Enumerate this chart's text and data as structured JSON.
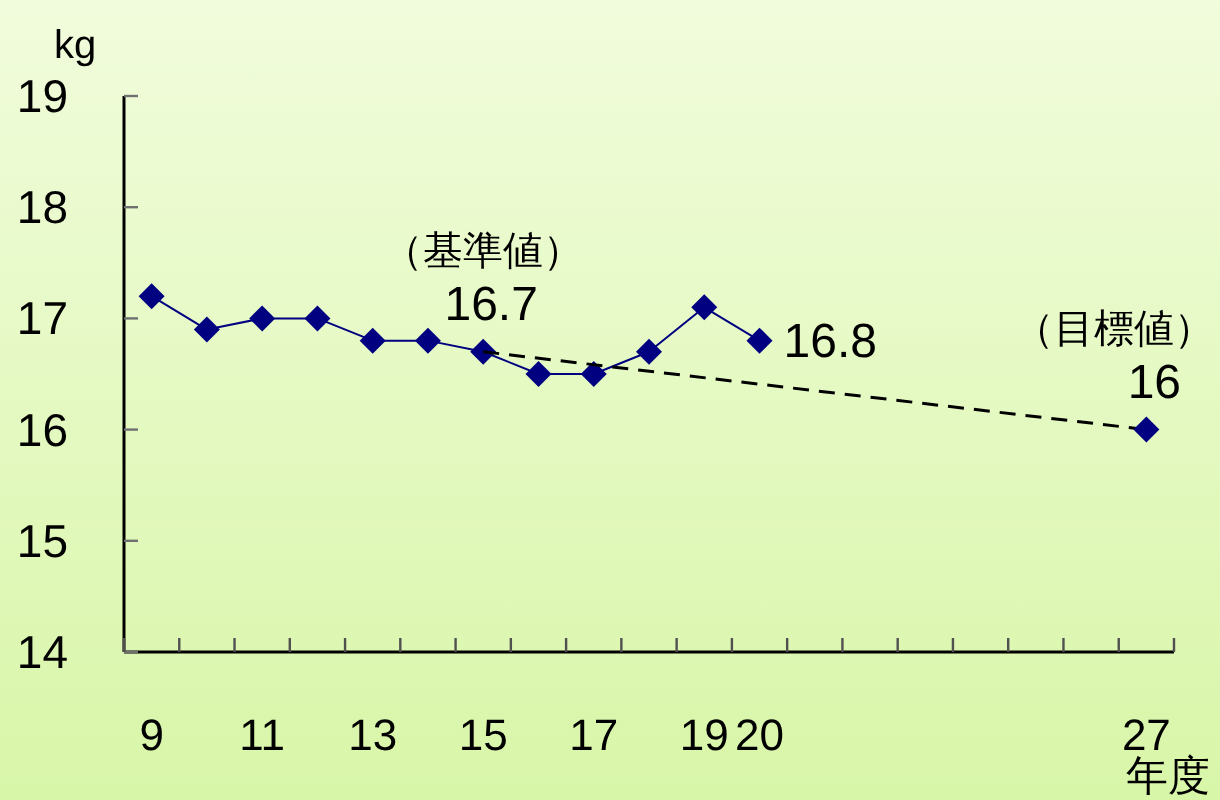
{
  "chart_data": {
    "type": "line",
    "xlabel": "年度",
    "ylabel": "kg",
    "series": [
      {
        "x": [
          9,
          10,
          11,
          12,
          13,
          14,
          15,
          16,
          17,
          18,
          19,
          20
        ],
        "color": "#000080",
        "values": [
          17.2,
          16.9,
          17.0,
          17.0,
          16.8,
          16.8,
          16.7,
          16.5,
          16.5,
          16.7,
          17.1,
          16.8
        ],
        "value_labels": [
          null,
          null,
          null,
          null,
          null,
          null,
          "16.7",
          null,
          null,
          null,
          null,
          "16.8"
        ]
      },
      {
        "type": "line",
        "x": [
          15,
          27
        ],
        "values": [
          16.7,
          16
        ],
        "color": "#000000",
        "line_style": "dashed",
        "marker": "none"
      },
      {
        "type": "scatter",
        "x": [
          27
        ],
        "values": [
          16
        ],
        "color": "#000080",
        "value_labels": [
          "16"
        ]
      }
    ],
    "marker": "diamond",
    "line_style": "solid",
    "xlim": [
      8.5,
      27.5
    ],
    "ylim": [
      14,
      19
    ],
    "yticks": [
      14,
      15,
      16,
      17,
      18,
      19
    ],
    "xticks": [
      {
        "value": 8.5,
        "label": null
      },
      {
        "value": 9.5,
        "label": null
      },
      {
        "value": 10.5,
        "label": null
      },
      {
        "value": 11.5,
        "label": null
      },
      {
        "value": 12.5,
        "label": null
      },
      {
        "value": 13.5,
        "label": null
      },
      {
        "value": 14.5,
        "label": null
      },
      {
        "value": 15.5,
        "label": null
      },
      {
        "value": 16.5,
        "label": null
      },
      {
        "value": 17.5,
        "label": null
      },
      {
        "value": 18.5,
        "label": null
      },
      {
        "value": 19.5,
        "label": null
      },
      {
        "value": 20.5,
        "label": null
      },
      {
        "value": 21.5,
        "label": null
      },
      {
        "value": 22.5,
        "label": null
      },
      {
        "value": 23.5,
        "label": null
      },
      {
        "value": 24.5,
        "label": null
      },
      {
        "value": 25.5,
        "label": null
      },
      {
        "value": 26.5,
        "label": null
      },
      {
        "value": 27.5,
        "label": null
      },
      9,
      11,
      13,
      15,
      17,
      19,
      20,
      27
    ],
    "annotations": [
      {
        "text": "（基準値）",
        "x": 15,
        "y": 16.7
      },
      {
        "text": "（目標値）",
        "x": 27,
        "y": 16
      }
    ]
  }
}
